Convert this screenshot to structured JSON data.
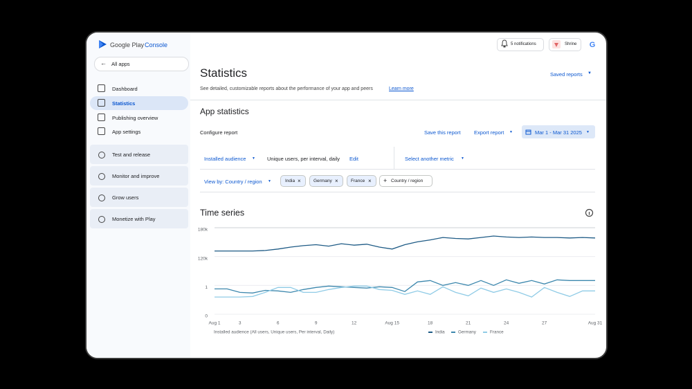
{
  "header": {
    "brand_google_play": "Google Play",
    "brand_console": "Console",
    "notifications": "5 notifications",
    "app_name": "Shrine"
  },
  "sidebar": {
    "all_apps": "All apps",
    "nav": [
      "Dashboard",
      "Statistics",
      "Publishing overview",
      "App settings"
    ],
    "groups": [
      "Test and release",
      "Monitor and improve",
      "Grow users",
      "Monetize with Play"
    ]
  },
  "main": {
    "title": "Statistics",
    "saved_reports": "Saved reports",
    "description": "See detailed, customizable reports about the performance of your app and peers",
    "learn_more": "Learn more",
    "section_title": "App statistics",
    "configure_report": "Configure report",
    "save_report": "Save this report",
    "export_report": "Export report",
    "date_range": "Mar 1 - Mar 31 2025",
    "metric": "Installed audience",
    "metric_detail": "Unique users, per interval, daily",
    "edit": "Edit",
    "select_metric": "Select another metric",
    "view_by": "View by: Country / region",
    "filters": [
      "India",
      "Germany",
      "France"
    ],
    "add_filter": "Country / region"
  },
  "chart_data": {
    "type": "line",
    "title": "Time series",
    "legend_title": "Installed audience (All users, Unique users, Per interval, Daily)",
    "categories": [
      "Aug 1",
      null,
      "3",
      null,
      null,
      "6",
      null,
      null,
      "9",
      null,
      null,
      "12",
      null,
      null,
      "Aug 15",
      null,
      null,
      "18",
      null,
      null,
      "21",
      null,
      null,
      "24",
      null,
      null,
      "27",
      null,
      null,
      null,
      "Aug 31"
    ],
    "series": [
      {
        "name": "India",
        "color": "#1d5a85",
        "values": [
          136000,
          136000,
          136000,
          136000,
          137000,
          140000,
          144000,
          147000,
          149000,
          146000,
          151000,
          148000,
          150000,
          144000,
          140000,
          149000,
          155000,
          159000,
          164000,
          162000,
          161000,
          164000,
          167000,
          165000,
          164000,
          165000,
          164000,
          164000,
          163000,
          164000,
          163000
        ]
      },
      {
        "name": "Germany",
        "color": "#3c87ad",
        "values": [
          0.95,
          0.95,
          0.83,
          0.81,
          0.9,
          0.88,
          0.83,
          0.93,
          1,
          5800,
          2900,
          1,
          0.98,
          2900,
          1,
          0.86,
          23100,
          28900,
          8700,
          20200,
          8700,
          28900,
          8700,
          31800,
          17300,
          28900,
          14500,
          31800,
          28900,
          28900,
          28900
        ]
      },
      {
        "name": "France",
        "color": "#8fcbe6",
        "values": [
          0.67,
          0.67,
          0.67,
          0.69,
          0.83,
          1,
          1,
          0.83,
          0.83,
          0.93,
          1,
          5800,
          5800,
          0.93,
          0.9,
          0.76,
          0.88,
          0.76,
          2900,
          0.83,
          0.71,
          0.98,
          0.83,
          0.95,
          0.83,
          0.67,
          1,
          0.83,
          0.69,
          0.88,
          0.88
        ]
      }
    ],
    "ylim": [
      0,
      180000
    ],
    "yticks": [
      0,
      1,
      {
        "value": 120000,
        "label": "120k"
      },
      {
        "value": 180000,
        "label": "180k"
      }
    ],
    "grid": true
  }
}
